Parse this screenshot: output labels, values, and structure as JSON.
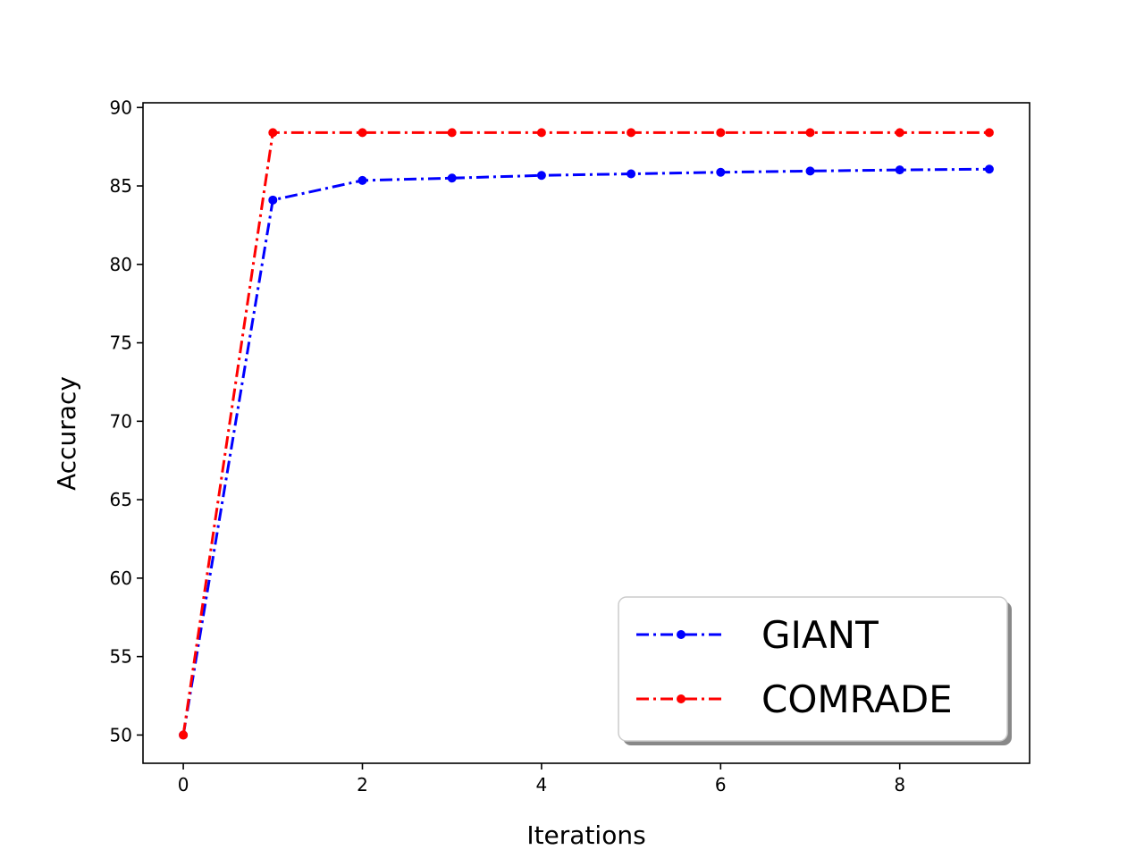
{
  "chart_data": {
    "type": "line",
    "xlabel": "Iterations",
    "ylabel": "Accuracy",
    "xlim": [
      -0.45,
      9.45
    ],
    "ylim": [
      48.2,
      90.3
    ],
    "xticks": [
      0,
      2,
      4,
      6,
      8
    ],
    "yticks": [
      50,
      55,
      60,
      65,
      70,
      75,
      80,
      85,
      90
    ],
    "grid": false,
    "legend_position": "lower-right",
    "x": [
      0,
      1,
      2,
      3,
      4,
      5,
      6,
      7,
      8,
      9
    ],
    "series": [
      {
        "name": "GIANT",
        "color": "#0000ff",
        "linestyle": "dashdot",
        "marker": "dot",
        "values": [
          50.0,
          84.1,
          85.35,
          85.5,
          85.67,
          85.77,
          85.87,
          85.95,
          86.02,
          86.07
        ]
      },
      {
        "name": "COMRADE",
        "color": "#ff0000",
        "linestyle": "dashdot",
        "marker": "dot",
        "values": [
          50.0,
          88.4,
          88.4,
          88.4,
          88.4,
          88.4,
          88.4,
          88.4,
          88.4,
          88.4
        ]
      }
    ]
  }
}
